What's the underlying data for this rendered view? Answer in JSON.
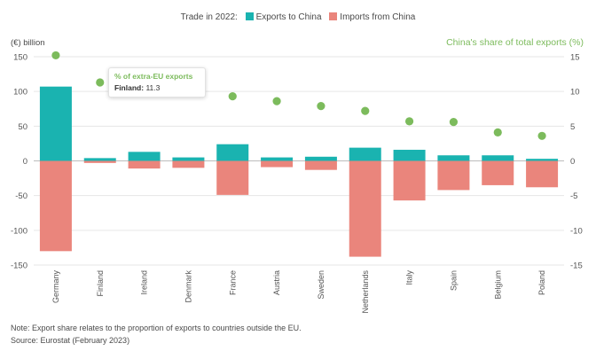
{
  "legend": {
    "title": "Trade in 2022:",
    "exports_label": "Exports to China",
    "imports_label": "Imports from China"
  },
  "axes": {
    "left_unit": "(€) billion",
    "right_title": "China's share of total exports (%)"
  },
  "tooltip": {
    "title": "% of extra-EU exports",
    "country": "Finland:",
    "value": "11.3"
  },
  "footer": {
    "note": "Note: Export share relates to the proportion of exports to countries outside the EU.",
    "source": "Source: Eurostat (February 2023)"
  },
  "colors": {
    "exports": "#1ab3b0",
    "imports": "#ea857c",
    "share": "#7cbb5c",
    "grid": "#e6e6e6",
    "axis_text": "#555555"
  },
  "chart_data": {
    "type": "bar",
    "categories": [
      "Germany",
      "Finland",
      "Ireland",
      "Denmark",
      "France",
      "Austria",
      "Sweden",
      "Netherlands",
      "Italy",
      "Spain",
      "Belgium",
      "Poland"
    ],
    "series": [
      {
        "name": "Exports to China",
        "type": "bar",
        "axis": "left",
        "values": [
          107,
          4,
          13,
          5,
          24,
          5,
          6,
          19,
          16,
          8,
          8,
          3
        ]
      },
      {
        "name": "Imports from China",
        "type": "bar",
        "axis": "left",
        "values": [
          -130,
          -3,
          -11,
          -10,
          -49,
          -9,
          -13,
          -138,
          -57,
          -42,
          -35,
          -38
        ]
      },
      {
        "name": "% of extra-EU exports",
        "type": "scatter",
        "axis": "right",
        "values": [
          15.2,
          11.3,
          null,
          null,
          9.3,
          8.6,
          7.9,
          7.2,
          5.7,
          5.6,
          4.1,
          3.6
        ]
      }
    ],
    "ylim_left": [
      -150,
      150
    ],
    "left_ticks": [
      150,
      100,
      50,
      0,
      -50,
      -100,
      -150
    ],
    "ylim_right": [
      -15,
      15
    ],
    "right_ticks": [
      15,
      10,
      5,
      0,
      -5,
      -10,
      -15
    ],
    "grid": true
  }
}
